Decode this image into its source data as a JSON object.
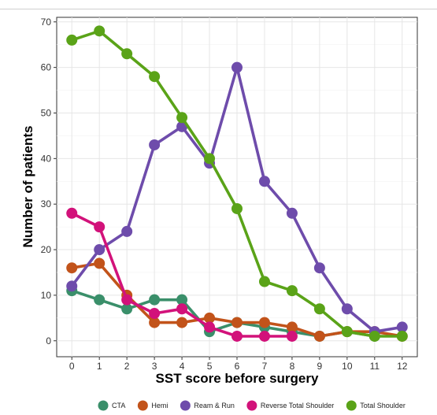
{
  "chart_data": {
    "type": "line",
    "xlabel": "SST score before surgery",
    "ylabel": "Number of patients",
    "xlim": [
      -0.55,
      12.55
    ],
    "ylim": [
      -3.5,
      71
    ],
    "x_ticks": [
      0,
      1,
      2,
      3,
      4,
      5,
      6,
      7,
      8,
      9,
      10,
      11,
      12
    ],
    "y_ticks": [
      0,
      10,
      20,
      30,
      40,
      50,
      60,
      70
    ],
    "grid": true,
    "legend_position": "bottom",
    "series": [
      {
        "name": "CTA",
        "color": "#3a8f6a",
        "x": [
          0,
          1,
          2,
          3,
          4,
          5,
          6,
          7,
          8,
          9,
          10,
          11
        ],
        "y": [
          11,
          9,
          7,
          9,
          9,
          2,
          4,
          3,
          2,
          1,
          2,
          1
        ]
      },
      {
        "name": "Hemi",
        "color": "#c2531a",
        "x": [
          0,
          1,
          2,
          3,
          4,
          5,
          6,
          7,
          8,
          9,
          10,
          11,
          12
        ],
        "y": [
          16,
          17,
          10,
          4,
          4,
          5,
          4,
          4,
          3,
          1,
          2,
          2,
          1
        ]
      },
      {
        "name": "Ream & Run",
        "color": "#6e4cab",
        "x": [
          0,
          1,
          2,
          3,
          4,
          5,
          6,
          7,
          8,
          9,
          10,
          11,
          12
        ],
        "y": [
          12,
          20,
          24,
          43,
          47,
          39,
          60,
          35,
          28,
          16,
          7,
          2,
          3
        ]
      },
      {
        "name": "Reverse Total Shoulder",
        "color": "#d2127a",
        "x": [
          0,
          1,
          2,
          3,
          4,
          5,
          6,
          7,
          8
        ],
        "y": [
          28,
          25,
          9,
          6,
          7,
          3,
          1,
          1,
          1
        ]
      },
      {
        "name": "Total Shoulder",
        "color": "#5aa318",
        "x": [
          0,
          1,
          2,
          3,
          4,
          5,
          6,
          7,
          8,
          9,
          10,
          11,
          12
        ],
        "y": [
          66,
          68,
          63,
          58,
          49,
          40,
          29,
          13,
          11,
          7,
          2,
          1,
          1
        ]
      }
    ]
  }
}
